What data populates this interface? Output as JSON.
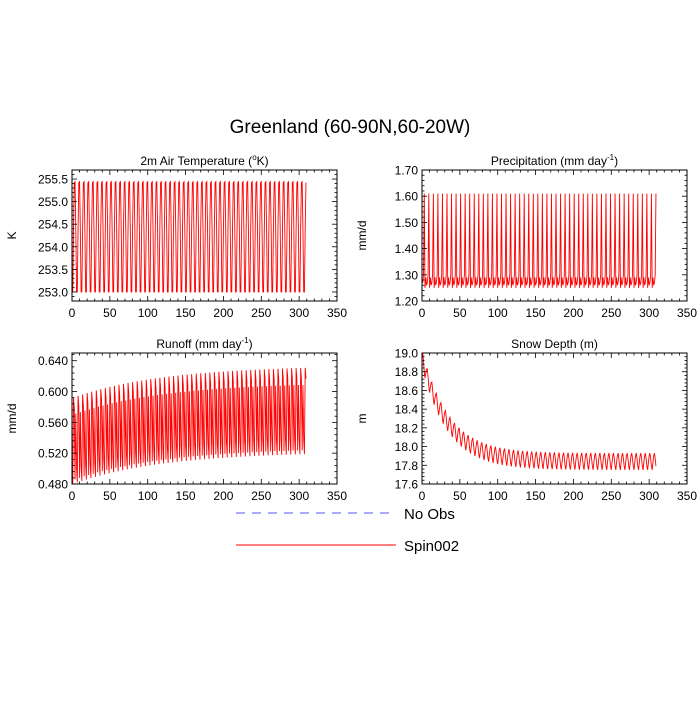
{
  "figure": {
    "title": "Greenland (60-90N,60-20W)"
  },
  "legend": {
    "placement": "bottom-center",
    "entries": [
      {
        "label": "No Obs",
        "color": "#5555ff",
        "style": "dashed"
      },
      {
        "label": "Spin002",
        "color": "#ff0000",
        "style": "solid"
      }
    ]
  },
  "chart_data": [
    {
      "type": "line",
      "title": "2m Air Temperature (",
      "title_sup": "o",
      "title_end": "K)",
      "ylabel": "K",
      "xlim": [
        0,
        350
      ],
      "ylim": [
        252.8,
        255.7
      ],
      "xticks": [
        0,
        50,
        100,
        150,
        200,
        250,
        300,
        350
      ],
      "yticks": [
        253.0,
        253.5,
        254.0,
        254.5,
        255.0,
        255.5
      ],
      "ytick_labels": [
        "253.0",
        "253.5",
        "254.0",
        "254.5",
        "255.0",
        "255.5"
      ],
      "series": [
        {
          "name": "Spin002",
          "color": "#ff0000",
          "period": 6,
          "n": 309,
          "pattern": [
            253.0,
            254.4,
            255.42,
            255.44,
            254.4,
            253.0
          ],
          "trend": {
            "start": 0,
            "end": 0,
            "tau": 0
          },
          "start_value": 253.0
        }
      ]
    },
    {
      "type": "line",
      "title": "Precipitation (mm day",
      "title_sup": "-1",
      "title_end": ")",
      "ylabel": "mm/d",
      "xlim": [
        0,
        350
      ],
      "ylim": [
        1.2,
        1.7
      ],
      "xticks": [
        0,
        50,
        100,
        150,
        200,
        250,
        300,
        350
      ],
      "yticks": [
        1.2,
        1.3,
        1.4,
        1.5,
        1.6,
        1.7
      ],
      "ytick_labels": [
        "1.20",
        "1.30",
        "1.40",
        "1.50",
        "1.60",
        "1.70"
      ],
      "series": [
        {
          "name": "Spin002",
          "color": "#ff0000",
          "period": 6,
          "n": 309,
          "pattern": [
            1.27,
            1.3,
            1.61,
            1.25,
            1.29,
            1.26
          ],
          "trend": {
            "start": 0,
            "end": 0,
            "tau": 0
          },
          "start_value": 1.27
        }
      ]
    },
    {
      "type": "line",
      "title": "Runoff (mm day",
      "title_sup": "-1",
      "title_end": ")",
      "ylabel": "mm/d",
      "xlim": [
        0,
        350
      ],
      "ylim": [
        0.48,
        0.65
      ],
      "xticks": [
        0,
        50,
        100,
        150,
        200,
        250,
        300,
        350
      ],
      "yticks": [
        0.48,
        0.52,
        0.56,
        0.6,
        0.64
      ],
      "ytick_labels": [
        "0.480",
        "0.520",
        "0.560",
        "0.600",
        "0.640"
      ],
      "series": [
        {
          "name": "Spin002",
          "color": "#ff0000",
          "period": 6,
          "n": 309,
          "pattern": [
            0.5,
            0.612,
            0.598,
            0.505,
            0.59,
            0.52
          ],
          "trend": {
            "start": -0.02,
            "end": 0.022,
            "tau": 120
          },
          "start_value": 0.48
        }
      ]
    },
    {
      "type": "line",
      "title": "Snow Depth (m)",
      "title_sup": "",
      "title_end": "",
      "ylabel": "m",
      "xlim": [
        0,
        350
      ],
      "ylim": [
        17.6,
        19.0
      ],
      "xticks": [
        0,
        50,
        100,
        150,
        200,
        250,
        300,
        350
      ],
      "yticks": [
        17.6,
        17.8,
        18.0,
        18.2,
        18.4,
        18.6,
        18.8,
        19.0
      ],
      "ytick_labels": [
        "17.6",
        "17.8",
        "18.0",
        "18.2",
        "18.4",
        "18.6",
        "18.8",
        "19.0"
      ],
      "series": [
        {
          "name": "Spin002",
          "color": "#ff0000",
          "period": 6,
          "n": 309,
          "pattern": [
            0.0,
            -0.06,
            -0.14,
            -0.18,
            -0.1,
            -0.03
          ],
          "trend": {
            "start": 19.0,
            "end": 17.93,
            "tau": 35
          },
          "start_value": 19.0
        }
      ]
    }
  ]
}
